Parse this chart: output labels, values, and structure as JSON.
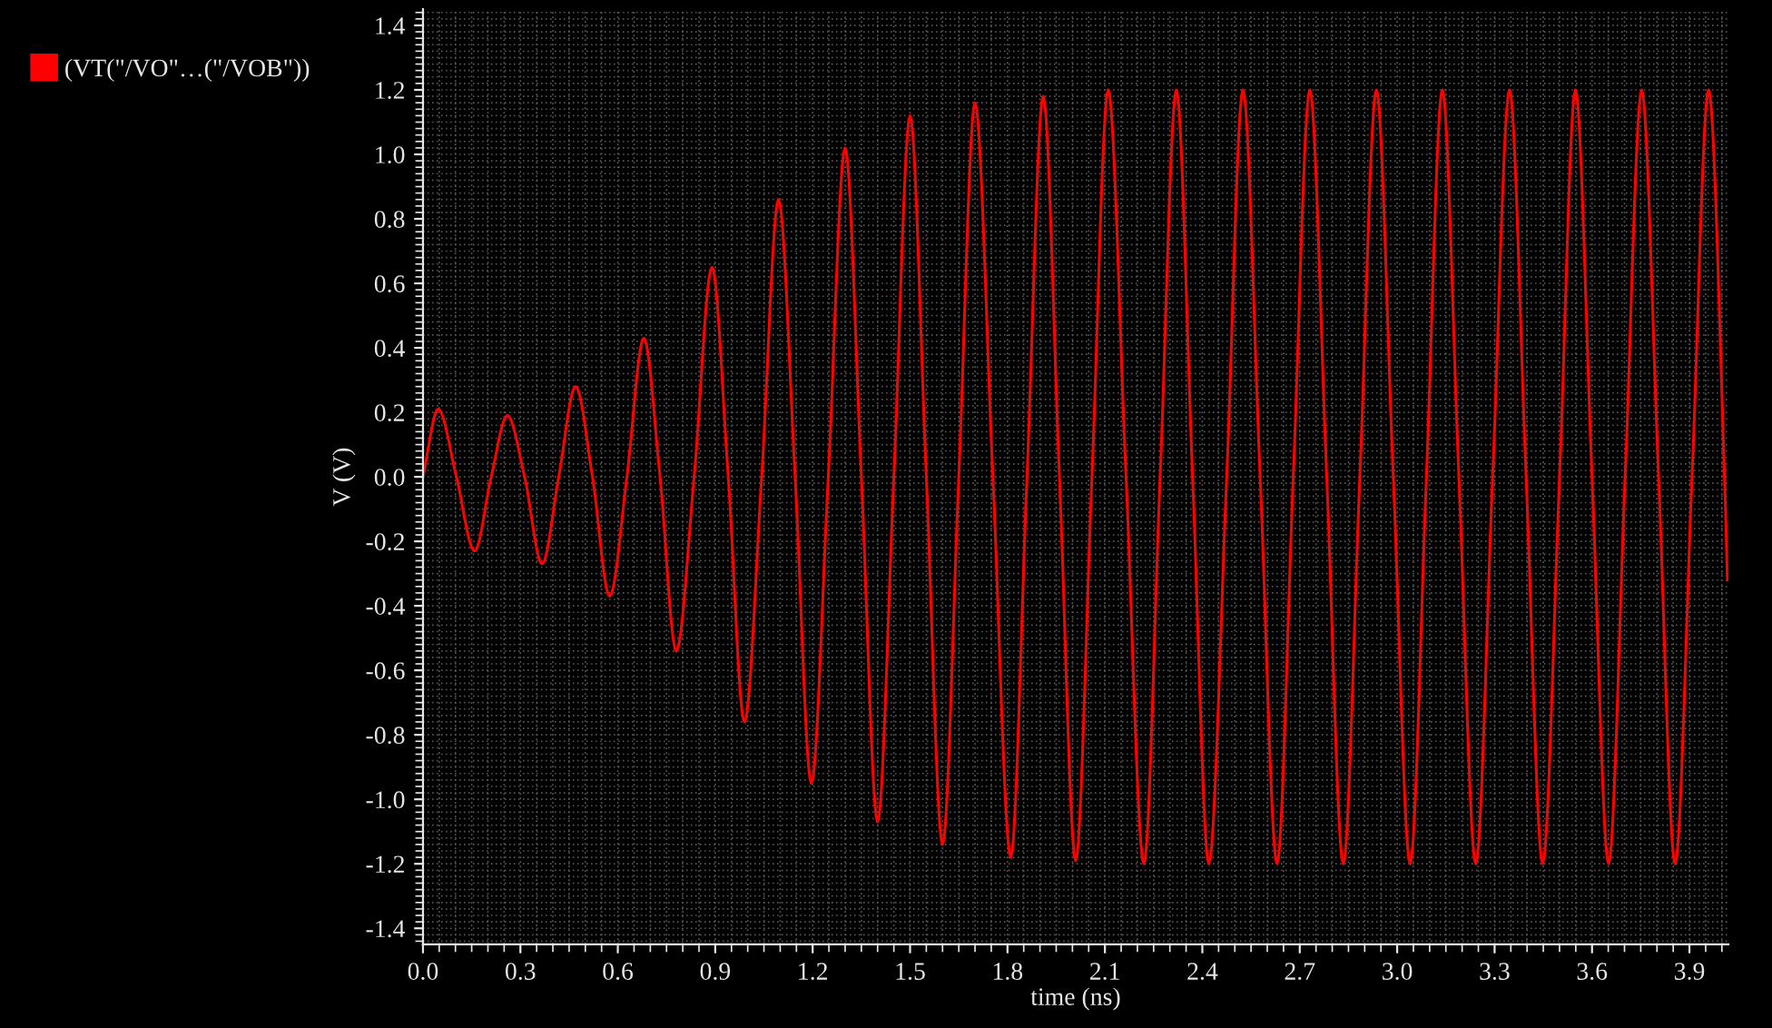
{
  "chart_data": {
    "type": "line",
    "xlabel": "time (ns)",
    "ylabel": "V (V)",
    "xlim": [
      0,
      4.02
    ],
    "ylim": [
      -1.45,
      1.45
    ],
    "xticks": [
      {
        "value": 0,
        "label": "0.0"
      },
      {
        "value": 0.3,
        "label": "0.3"
      },
      {
        "value": 0.6,
        "label": "0.6"
      },
      {
        "value": 0.9,
        "label": "0.9"
      },
      {
        "value": 1.2,
        "label": "1.2"
      },
      {
        "value": 1.5,
        "label": "1.5"
      },
      {
        "value": 1.8,
        "label": "1.8"
      },
      {
        "value": 2.1,
        "label": "2.1"
      },
      {
        "value": 2.4,
        "label": "2.4"
      },
      {
        "value": 2.7,
        "label": "2.7"
      },
      {
        "value": 3.0,
        "label": "3.0"
      },
      {
        "value": 3.3,
        "label": "3.3"
      },
      {
        "value": 3.6,
        "label": "3.6"
      },
      {
        "value": 3.9,
        "label": "3.9"
      }
    ],
    "yticks": [
      {
        "value": -1.4,
        "label": "-1.4"
      },
      {
        "value": -1.2,
        "label": "-1.2"
      },
      {
        "value": -1.0,
        "label": "-1.0"
      },
      {
        "value": -0.8,
        "label": "-0.8"
      },
      {
        "value": -0.6,
        "label": "-0.6"
      },
      {
        "value": -0.4,
        "label": "-0.4"
      },
      {
        "value": -0.2,
        "label": "-0.2"
      },
      {
        "value": 0,
        "label": "0.0"
      },
      {
        "value": 0.2,
        "label": "0.2"
      },
      {
        "value": 0.4,
        "label": "0.4"
      },
      {
        "value": 0.6,
        "label": "0.6"
      },
      {
        "value": 0.8,
        "label": "0.8"
      },
      {
        "value": 1.0,
        "label": "1.0"
      },
      {
        "value": 1.2,
        "label": "1.2"
      },
      {
        "value": 1.4,
        "label": "1.4"
      }
    ],
    "grid": true,
    "legend": "left",
    "marker": "none",
    "line_style": "solid",
    "series": [
      {
        "name": "(VT(\"/VO\"…(\"/VOB\"))",
        "color": "#ff0000",
        "x": [
          0.0,
          0.047,
          0.103,
          0.159,
          0.21,
          0.26,
          0.313,
          0.367,
          0.418,
          0.47,
          0.522,
          0.575,
          0.628,
          0.68,
          0.73,
          0.78,
          0.835,
          0.89,
          0.94,
          0.99,
          1.043,
          1.095,
          1.146,
          1.196,
          1.248,
          1.3,
          1.35,
          1.4,
          1.45,
          1.5,
          1.55,
          1.6,
          1.65,
          1.7,
          1.755,
          1.81,
          1.86,
          1.91,
          1.96,
          2.01,
          2.06,
          2.11,
          2.165,
          2.22,
          2.27,
          2.32,
          2.37,
          2.42,
          2.475,
          2.525,
          2.578,
          2.63,
          2.68,
          2.731,
          2.783,
          2.834,
          2.885,
          2.936,
          2.988,
          3.04,
          3.09,
          3.139,
          3.19,
          3.242,
          3.294,
          3.346,
          3.397,
          3.448,
          3.5,
          3.549,
          3.6,
          3.651,
          3.702,
          3.753,
          3.805,
          3.856,
          3.908,
          3.959,
          4.008,
          4.017
        ],
        "values": [
          0,
          0.21,
          0,
          -0.23,
          0,
          0.19,
          0,
          -0.27,
          0,
          0.28,
          0,
          -0.37,
          0,
          0.43,
          0,
          -0.54,
          0,
          0.65,
          0,
          -0.76,
          0,
          0.86,
          0,
          -0.95,
          0,
          1.02,
          0,
          -1.07,
          0,
          1.12,
          0,
          -1.14,
          0,
          1.16,
          0,
          -1.18,
          0,
          1.18,
          0,
          -1.19,
          0,
          1.2,
          0,
          -1.2,
          0,
          1.2,
          0,
          -1.2,
          0,
          1.2,
          0,
          -1.2,
          0,
          1.2,
          0,
          -1.2,
          0,
          1.2,
          0,
          -1.2,
          0,
          1.2,
          0,
          -1.2,
          0,
          1.2,
          0,
          -1.2,
          0,
          1.2,
          0,
          -1.2,
          0,
          1.2,
          0,
          -1.2,
          0,
          1.2,
          0,
          -0.32
        ]
      }
    ]
  }
}
